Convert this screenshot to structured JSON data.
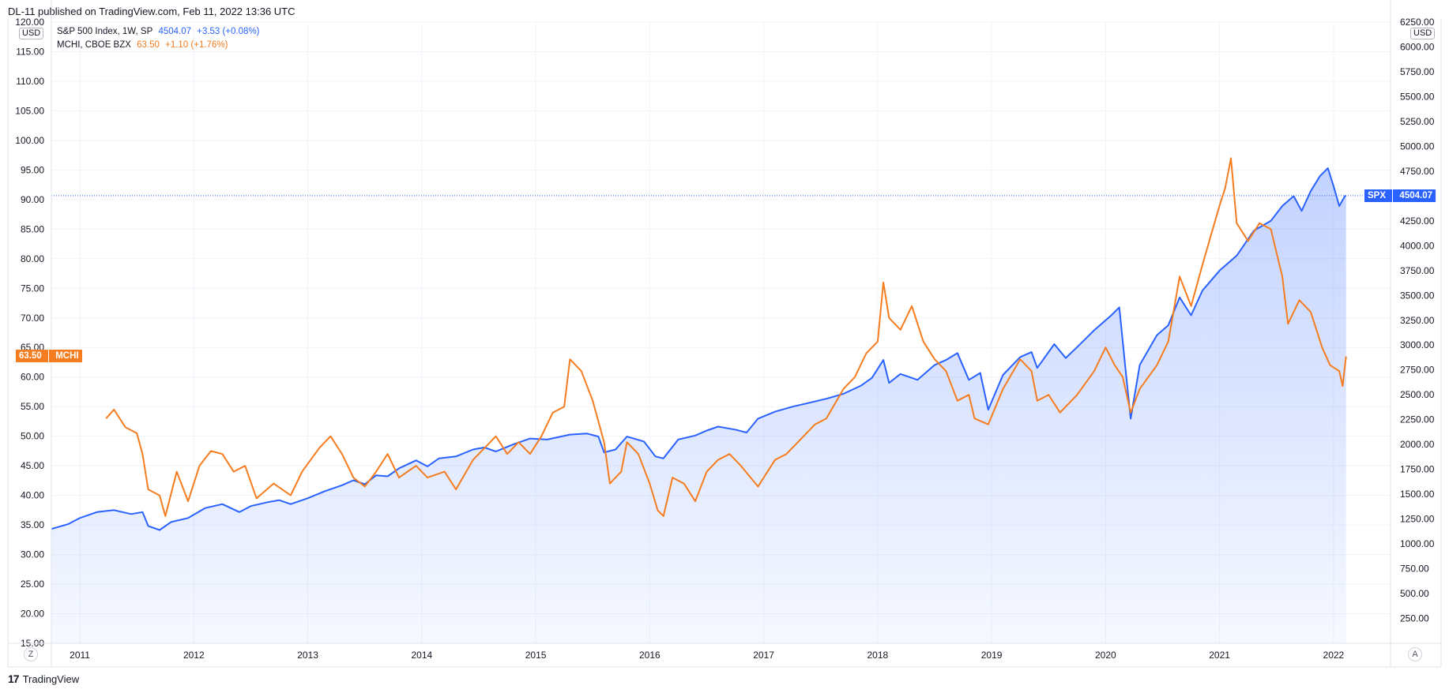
{
  "publish_line": "DL-11 published on TradingView.com, Feb 11, 2022 13:36 UTC",
  "legend": {
    "spx": {
      "label": "S&P 500 Index, 1W, SP",
      "price": "4504.07",
      "change": "+3.53 (+0.08%)",
      "color": "#2962ff"
    },
    "mchi": {
      "label": "MCHI, CBOE BZX",
      "price": "63.50",
      "change": "+1.10 (+1.76%)",
      "color": "#f57c1f"
    }
  },
  "left_currency": "USD",
  "right_currency": "USD",
  "spx_tag": {
    "ticker": "SPX",
    "price": "4504.07"
  },
  "mchi_tag": {
    "price": "63.50",
    "ticker": "MCHI"
  },
  "buttons": {
    "log_left": "Z",
    "auto_right": "A"
  },
  "footer_brand": "TradingView",
  "footer_icon": "tradingview-logo-icon",
  "chart_data": {
    "type": "line",
    "x_ticks": [
      "2011",
      "2012",
      "2013",
      "2014",
      "2015",
      "2016",
      "2017",
      "2018",
      "2019",
      "2020",
      "2021",
      "2022"
    ],
    "left_axis": {
      "label": "USD",
      "range": [
        15,
        120
      ],
      "ticks": [
        "15.00",
        "20.00",
        "25.00",
        "30.00",
        "35.00",
        "40.00",
        "45.00",
        "50.00",
        "55.00",
        "60.00",
        "65.00",
        "70.00",
        "75.00",
        "80.00",
        "85.00",
        "90.00",
        "95.00",
        "100.00",
        "105.00",
        "110.00",
        "115.00",
        "120.00"
      ]
    },
    "right_axis": {
      "label": "USD",
      "range": [
        0,
        6250
      ],
      "ticks": [
        "250.00",
        "500.00",
        "750.00",
        "1000.00",
        "1250.00",
        "1500.00",
        "1750.00",
        "2000.00",
        "2250.00",
        "2500.00",
        "2750.00",
        "3000.00",
        "3250.00",
        "3500.00",
        "3750.00",
        "4000.00",
        "4250.00",
        "4500.00",
        "4750.00",
        "5000.00",
        "5250.00",
        "5500.00",
        "5750.00",
        "6000.00",
        "6250.00"
      ]
    },
    "grid": true,
    "series": [
      {
        "name": "S&P 500 Index, 1W, SP",
        "axis": "right",
        "color": "#2962ff",
        "area": true,
        "points": [
          [
            2010.75,
            1150
          ],
          [
            2010.9,
            1200
          ],
          [
            2011.0,
            1260
          ],
          [
            2011.15,
            1320
          ],
          [
            2011.3,
            1340
          ],
          [
            2011.45,
            1300
          ],
          [
            2011.55,
            1320
          ],
          [
            2011.6,
            1180
          ],
          [
            2011.7,
            1140
          ],
          [
            2011.8,
            1220
          ],
          [
            2011.95,
            1260
          ],
          [
            2012.1,
            1360
          ],
          [
            2012.25,
            1400
          ],
          [
            2012.4,
            1320
          ],
          [
            2012.5,
            1380
          ],
          [
            2012.65,
            1420
          ],
          [
            2012.75,
            1440
          ],
          [
            2012.85,
            1400
          ],
          [
            2013.0,
            1460
          ],
          [
            2013.15,
            1530
          ],
          [
            2013.3,
            1590
          ],
          [
            2013.4,
            1640
          ],
          [
            2013.5,
            1600
          ],
          [
            2013.6,
            1690
          ],
          [
            2013.7,
            1680
          ],
          [
            2013.8,
            1760
          ],
          [
            2013.95,
            1840
          ],
          [
            2014.05,
            1780
          ],
          [
            2014.15,
            1860
          ],
          [
            2014.3,
            1880
          ],
          [
            2014.45,
            1950
          ],
          [
            2014.55,
            1970
          ],
          [
            2014.65,
            1930
          ],
          [
            2014.8,
            2000
          ],
          [
            2014.95,
            2060
          ],
          [
            2015.1,
            2050
          ],
          [
            2015.3,
            2100
          ],
          [
            2015.45,
            2110
          ],
          [
            2015.55,
            2080
          ],
          [
            2015.6,
            1920
          ],
          [
            2015.7,
            1950
          ],
          [
            2015.8,
            2080
          ],
          [
            2015.95,
            2030
          ],
          [
            2016.05,
            1880
          ],
          [
            2016.12,
            1860
          ],
          [
            2016.25,
            2050
          ],
          [
            2016.4,
            2090
          ],
          [
            2016.5,
            2140
          ],
          [
            2016.6,
            2180
          ],
          [
            2016.75,
            2150
          ],
          [
            2016.85,
            2120
          ],
          [
            2016.95,
            2260
          ],
          [
            2017.1,
            2330
          ],
          [
            2017.25,
            2380
          ],
          [
            2017.4,
            2420
          ],
          [
            2017.55,
            2460
          ],
          [
            2017.7,
            2510
          ],
          [
            2017.85,
            2590
          ],
          [
            2017.95,
            2670
          ],
          [
            2018.05,
            2850
          ],
          [
            2018.1,
            2620
          ],
          [
            2018.2,
            2710
          ],
          [
            2018.35,
            2650
          ],
          [
            2018.5,
            2800
          ],
          [
            2018.6,
            2850
          ],
          [
            2018.7,
            2920
          ],
          [
            2018.8,
            2650
          ],
          [
            2018.9,
            2720
          ],
          [
            2018.97,
            2350
          ],
          [
            2019.1,
            2700
          ],
          [
            2019.25,
            2880
          ],
          [
            2019.35,
            2930
          ],
          [
            2019.4,
            2770
          ],
          [
            2019.55,
            3010
          ],
          [
            2019.65,
            2870
          ],
          [
            2019.75,
            2980
          ],
          [
            2019.9,
            3150
          ],
          [
            2020.05,
            3300
          ],
          [
            2020.12,
            3380
          ],
          [
            2020.18,
            2700
          ],
          [
            2020.22,
            2260
          ],
          [
            2020.3,
            2800
          ],
          [
            2020.45,
            3100
          ],
          [
            2020.55,
            3200
          ],
          [
            2020.65,
            3480
          ],
          [
            2020.75,
            3300
          ],
          [
            2020.85,
            3550
          ],
          [
            2021.0,
            3750
          ],
          [
            2021.15,
            3900
          ],
          [
            2021.3,
            4150
          ],
          [
            2021.45,
            4250
          ],
          [
            2021.55,
            4400
          ],
          [
            2021.65,
            4500
          ],
          [
            2021.72,
            4350
          ],
          [
            2021.8,
            4550
          ],
          [
            2021.88,
            4700
          ],
          [
            2021.95,
            4780
          ],
          [
            2022.0,
            4600
          ],
          [
            2022.05,
            4400
          ],
          [
            2022.1,
            4500
          ],
          [
            2022.11,
            4504
          ]
        ]
      },
      {
        "name": "MCHI, CBOE BZX",
        "axis": "left",
        "color": "#f57c1f",
        "area": false,
        "points": [
          [
            2011.23,
            53
          ],
          [
            2011.3,
            54.5
          ],
          [
            2011.4,
            51.5
          ],
          [
            2011.5,
            50.5
          ],
          [
            2011.55,
            47
          ],
          [
            2011.6,
            41
          ],
          [
            2011.7,
            40
          ],
          [
            2011.75,
            36.5
          ],
          [
            2011.85,
            44
          ],
          [
            2011.95,
            39
          ],
          [
            2012.05,
            45
          ],
          [
            2012.15,
            47.5
          ],
          [
            2012.25,
            47
          ],
          [
            2012.35,
            44
          ],
          [
            2012.45,
            45
          ],
          [
            2012.55,
            39.5
          ],
          [
            2012.7,
            42
          ],
          [
            2012.85,
            40
          ],
          [
            2012.95,
            44
          ],
          [
            2013.1,
            48
          ],
          [
            2013.2,
            50
          ],
          [
            2013.3,
            47
          ],
          [
            2013.4,
            43
          ],
          [
            2013.5,
            41.5
          ],
          [
            2013.6,
            44
          ],
          [
            2013.7,
            47
          ],
          [
            2013.8,
            43
          ],
          [
            2013.95,
            45
          ],
          [
            2014.05,
            43
          ],
          [
            2014.2,
            44
          ],
          [
            2014.3,
            41
          ],
          [
            2014.45,
            46
          ],
          [
            2014.55,
            48
          ],
          [
            2014.65,
            50
          ],
          [
            2014.75,
            47
          ],
          [
            2014.85,
            49
          ],
          [
            2014.95,
            47
          ],
          [
            2015.05,
            50
          ],
          [
            2015.15,
            54
          ],
          [
            2015.25,
            55
          ],
          [
            2015.3,
            63
          ],
          [
            2015.4,
            61
          ],
          [
            2015.5,
            56
          ],
          [
            2015.6,
            49
          ],
          [
            2015.65,
            42
          ],
          [
            2015.75,
            44
          ],
          [
            2015.8,
            49
          ],
          [
            2015.9,
            47
          ],
          [
            2016.0,
            42
          ],
          [
            2016.07,
            37.5
          ],
          [
            2016.12,
            36.5
          ],
          [
            2016.2,
            43
          ],
          [
            2016.3,
            42
          ],
          [
            2016.4,
            39
          ],
          [
            2016.5,
            44
          ],
          [
            2016.6,
            46
          ],
          [
            2016.7,
            47
          ],
          [
            2016.8,
            45
          ],
          [
            2016.95,
            41.5
          ],
          [
            2017.1,
            46
          ],
          [
            2017.2,
            47
          ],
          [
            2017.3,
            49
          ],
          [
            2017.45,
            52
          ],
          [
            2017.55,
            53
          ],
          [
            2017.7,
            58
          ],
          [
            2017.8,
            60
          ],
          [
            2017.9,
            64
          ],
          [
            2018.0,
            66
          ],
          [
            2018.05,
            76
          ],
          [
            2018.1,
            70
          ],
          [
            2018.2,
            68
          ],
          [
            2018.3,
            72
          ],
          [
            2018.4,
            66
          ],
          [
            2018.5,
            63
          ],
          [
            2018.6,
            61
          ],
          [
            2018.7,
            56
          ],
          [
            2018.8,
            57
          ],
          [
            2018.85,
            53
          ],
          [
            2018.97,
            52
          ],
          [
            2019.1,
            58
          ],
          [
            2019.25,
            63
          ],
          [
            2019.35,
            61
          ],
          [
            2019.4,
            56
          ],
          [
            2019.5,
            57
          ],
          [
            2019.6,
            54
          ],
          [
            2019.75,
            57
          ],
          [
            2019.9,
            61
          ],
          [
            2020.0,
            65
          ],
          [
            2020.08,
            62
          ],
          [
            2020.15,
            60
          ],
          [
            2020.22,
            54
          ],
          [
            2020.3,
            58
          ],
          [
            2020.45,
            62
          ],
          [
            2020.55,
            66
          ],
          [
            2020.65,
            77
          ],
          [
            2020.75,
            72
          ],
          [
            2020.85,
            79
          ],
          [
            2021.0,
            89
          ],
          [
            2021.05,
            92
          ],
          [
            2021.1,
            97
          ],
          [
            2021.15,
            86
          ],
          [
            2021.25,
            83
          ],
          [
            2021.35,
            86
          ],
          [
            2021.45,
            85
          ],
          [
            2021.55,
            77
          ],
          [
            2021.6,
            69
          ],
          [
            2021.7,
            73
          ],
          [
            2021.8,
            71
          ],
          [
            2021.9,
            65
          ],
          [
            2021.97,
            62
          ],
          [
            2022.05,
            61
          ],
          [
            2022.08,
            58.5
          ],
          [
            2022.11,
            63.5
          ]
        ]
      }
    ]
  }
}
